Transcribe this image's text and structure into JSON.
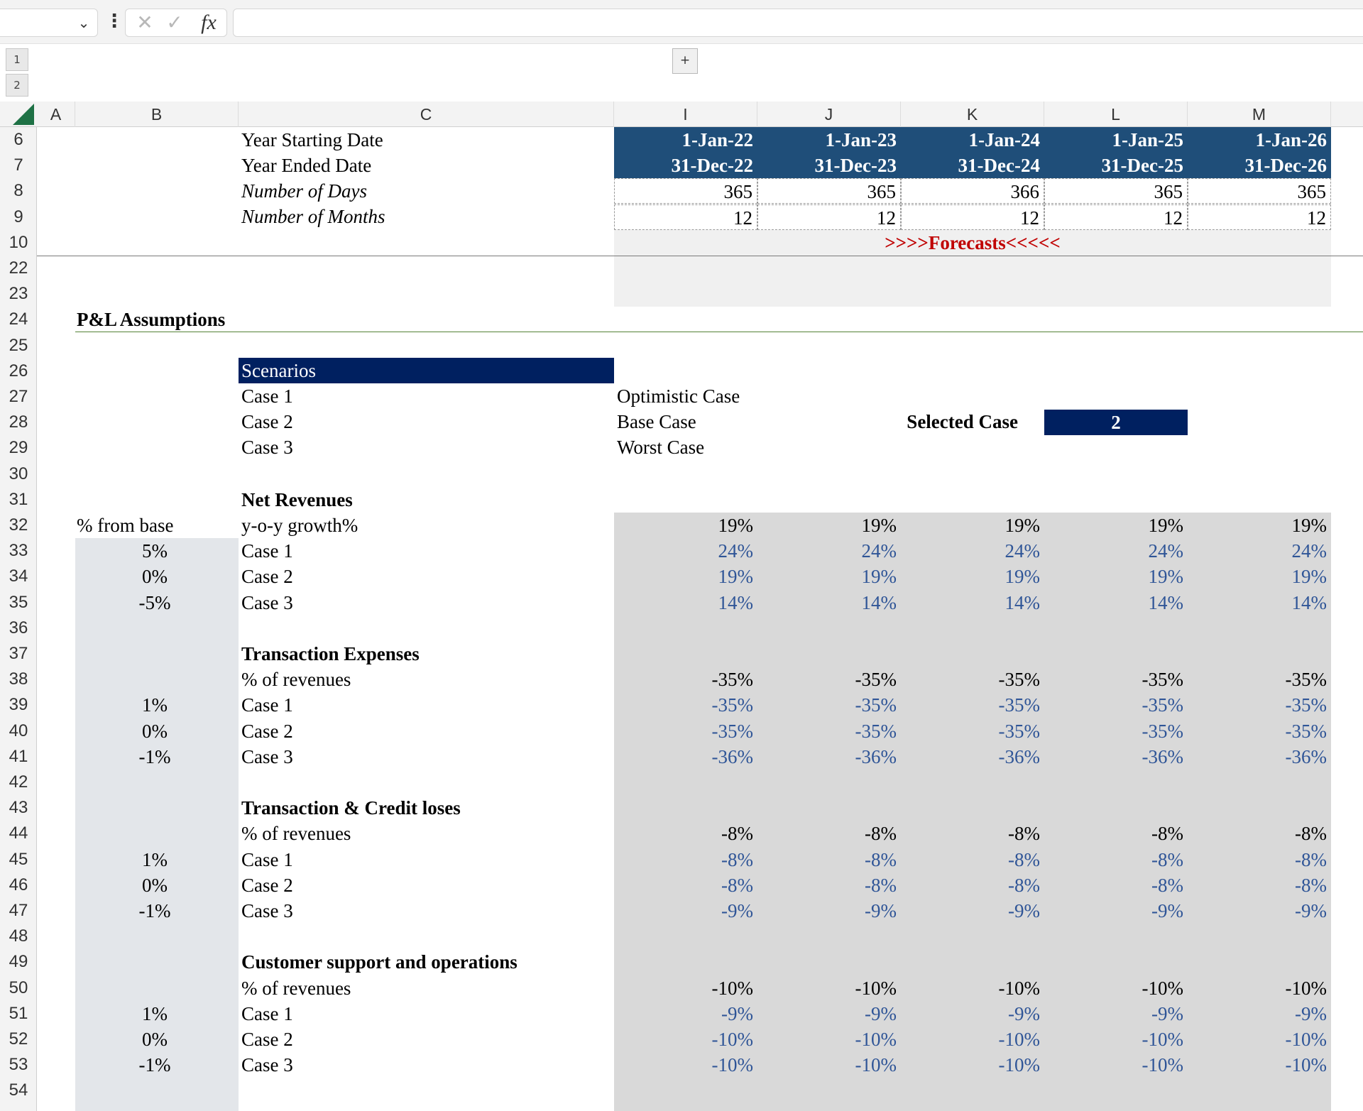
{
  "formula_bar": {
    "cancel_icon": "cancel-x-icon",
    "enter_icon": "check-icon",
    "function_icon": "fx-icon",
    "function_label": "fx",
    "value": ""
  },
  "outline": {
    "levels": [
      "1",
      "2"
    ],
    "expand_symbol": "+"
  },
  "columns": [
    "A",
    "B",
    "C",
    "I",
    "J",
    "K",
    "L",
    "M"
  ],
  "rows": [
    "6",
    "7",
    "8",
    "9",
    "10",
    "22",
    "23",
    "24",
    "25",
    "26",
    "27",
    "28",
    "29",
    "30",
    "31",
    "32",
    "33",
    "34",
    "35",
    "36",
    "37",
    "38",
    "39",
    "40",
    "41",
    "42",
    "43",
    "44",
    "45",
    "46",
    "47",
    "48",
    "49",
    "50",
    "51",
    "52",
    "53",
    "54"
  ],
  "timeline": {
    "start_label": "Year Starting Date",
    "end_label": "Year Ended Date",
    "days_label": "Number of Days",
    "months_label": "Number of Months",
    "start_dates": [
      "1-Jan-22",
      "1-Jan-23",
      "1-Jan-24",
      "1-Jan-25",
      "1-Jan-26"
    ],
    "end_dates": [
      "31-Dec-22",
      "31-Dec-23",
      "31-Dec-24",
      "31-Dec-25",
      "31-Dec-26"
    ],
    "days": [
      "365",
      "365",
      "366",
      "365",
      "365"
    ],
    "months": [
      "12",
      "12",
      "12",
      "12",
      "12"
    ],
    "forecast_banner": ">>>>Forecasts<<<<<"
  },
  "assumptions": {
    "title": "P&L Assumptions",
    "scenarios_header": "Scenarios",
    "cases": [
      "Case 1",
      "Case 2",
      "Case 3"
    ],
    "case_names": [
      "Optimistic Case",
      "Base Case",
      "Worst Case"
    ],
    "selected_label": "Selected Case",
    "selected_value": "2",
    "pct_from_base_label": "% from base"
  },
  "sections": [
    {
      "title": "Net Revenues",
      "metric": "y-o-y growth%",
      "active": [
        "19%",
        "19%",
        "19%",
        "19%",
        "19%"
      ],
      "deltas": [
        "5%",
        "0%",
        "-5%"
      ],
      "case_values": [
        [
          "24%",
          "24%",
          "24%",
          "24%",
          "24%"
        ],
        [
          "19%",
          "19%",
          "19%",
          "19%",
          "19%"
        ],
        [
          "14%",
          "14%",
          "14%",
          "14%",
          "14%"
        ]
      ]
    },
    {
      "title": "Transaction Expenses",
      "metric": "% of revenues",
      "active": [
        "-35%",
        "-35%",
        "-35%",
        "-35%",
        "-35%"
      ],
      "deltas": [
        "1%",
        "0%",
        "-1%"
      ],
      "case_values": [
        [
          "-35%",
          "-35%",
          "-35%",
          "-35%",
          "-35%"
        ],
        [
          "-35%",
          "-35%",
          "-35%",
          "-35%",
          "-35%"
        ],
        [
          "-36%",
          "-36%",
          "-36%",
          "-36%",
          "-36%"
        ]
      ]
    },
    {
      "title": "Transaction & Credit loses",
      "metric": "% of revenues",
      "active": [
        "-8%",
        "-8%",
        "-8%",
        "-8%",
        "-8%"
      ],
      "deltas": [
        "1%",
        "0%",
        "-1%"
      ],
      "case_values": [
        [
          "-8%",
          "-8%",
          "-8%",
          "-8%",
          "-8%"
        ],
        [
          "-8%",
          "-8%",
          "-8%",
          "-8%",
          "-8%"
        ],
        [
          "-9%",
          "-9%",
          "-9%",
          "-9%",
          "-9%"
        ]
      ]
    },
    {
      "title": "Customer support and operations",
      "metric": "% of revenues",
      "active": [
        "-10%",
        "-10%",
        "-10%",
        "-10%",
        "-10%"
      ],
      "deltas": [
        "1%",
        "0%",
        "-1%"
      ],
      "case_values": [
        [
          "-9%",
          "-9%",
          "-9%",
          "-9%",
          "-9%"
        ],
        [
          "-10%",
          "-10%",
          "-10%",
          "-10%",
          "-10%"
        ],
        [
          "-10%",
          "-10%",
          "-10%",
          "-10%",
          "-10%"
        ]
      ]
    }
  ],
  "colors": {
    "header_navy": "#1f4e79",
    "scenario_navy": "#002060",
    "input_blue": "#2f5597",
    "forecast_red": "#c00000",
    "forecast_grey": "#d9d9d9"
  }
}
